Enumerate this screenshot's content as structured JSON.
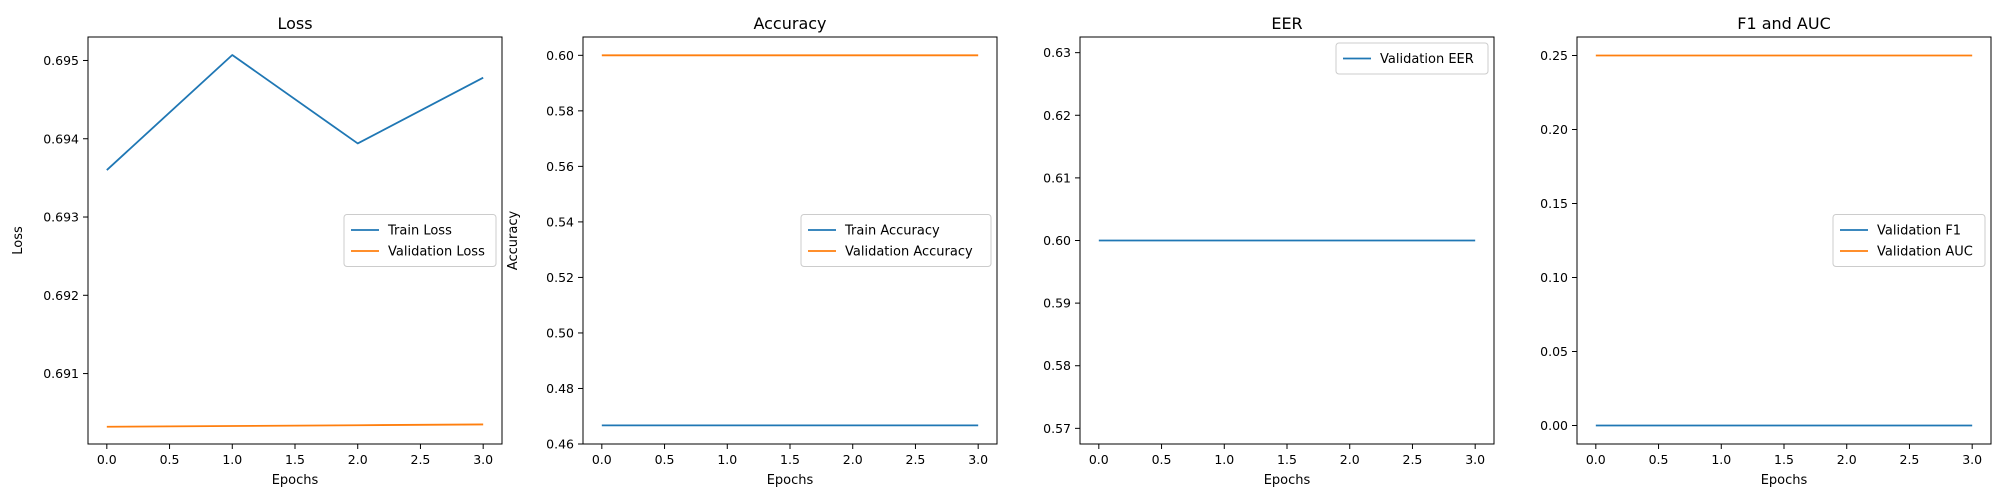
{
  "chart_data": [
    {
      "type": "line",
      "title": "Loss",
      "xlabel": "Epochs",
      "ylabel": "Loss",
      "x": [
        0,
        1,
        2,
        3
      ],
      "xlim": [
        -0.15,
        3.15
      ],
      "ylim": [
        0.6901,
        0.6953
      ],
      "xticks": [
        0.0,
        0.5,
        1.0,
        1.5,
        2.0,
        2.5,
        3.0
      ],
      "xtick_labels": [
        "0.0",
        "0.5",
        "1.0",
        "1.5",
        "2.0",
        "2.5",
        "3.0"
      ],
      "yticks": [
        0.691,
        0.692,
        0.693,
        0.694,
        0.695
      ],
      "ytick_labels": [
        "0.691",
        "0.692",
        "0.693",
        "0.694",
        "0.695"
      ],
      "legend_position": "center right",
      "grid": false,
      "series": [
        {
          "name": "Train Loss",
          "color": "#1f77b4",
          "values": [
            0.6936,
            0.69507,
            0.69394,
            0.69478
          ]
        },
        {
          "name": "Validation Loss",
          "color": "#ff7f0e",
          "values": [
            0.69032,
            0.69033,
            0.69034,
            0.69035
          ]
        }
      ]
    },
    {
      "type": "line",
      "title": "Accuracy",
      "xlabel": "Epochs",
      "ylabel": "Accuracy",
      "x": [
        0,
        1,
        2,
        3
      ],
      "xlim": [
        -0.15,
        3.15
      ],
      "ylim": [
        0.46,
        0.6066
      ],
      "xticks": [
        0.0,
        0.5,
        1.0,
        1.5,
        2.0,
        2.5,
        3.0
      ],
      "xtick_labels": [
        "0.0",
        "0.5",
        "1.0",
        "1.5",
        "2.0",
        "2.5",
        "3.0"
      ],
      "yticks": [
        0.46,
        0.48,
        0.5,
        0.52,
        0.54,
        0.56,
        0.58,
        0.6
      ],
      "ytick_labels": [
        "0.46",
        "0.48",
        "0.50",
        "0.52",
        "0.54",
        "0.56",
        "0.58",
        "0.60"
      ],
      "legend_position": "center right",
      "grid": false,
      "series": [
        {
          "name": "Train Accuracy",
          "color": "#1f77b4",
          "values": [
            0.4667,
            0.4667,
            0.4667,
            0.4667
          ]
        },
        {
          "name": "Validation Accuracy",
          "color": "#ff7f0e",
          "values": [
            0.6,
            0.6,
            0.6,
            0.6
          ]
        }
      ]
    },
    {
      "type": "line",
      "title": "EER",
      "xlabel": "Epochs",
      "ylabel": "",
      "x": [
        0,
        1,
        2,
        3
      ],
      "xlim": [
        -0.15,
        3.15
      ],
      "ylim": [
        0.5675,
        0.6325
      ],
      "xticks": [
        0.0,
        0.5,
        1.0,
        1.5,
        2.0,
        2.5,
        3.0
      ],
      "xtick_labels": [
        "0.0",
        "0.5",
        "1.0",
        "1.5",
        "2.0",
        "2.5",
        "3.0"
      ],
      "yticks": [
        0.57,
        0.58,
        0.59,
        0.6,
        0.61,
        0.62,
        0.63
      ],
      "ytick_labels": [
        "0.57",
        "0.58",
        "0.59",
        "0.60",
        "0.61",
        "0.62",
        "0.63"
      ],
      "legend_position": "upper right",
      "grid": false,
      "series": [
        {
          "name": "Validation EER",
          "color": "#1f77b4",
          "values": [
            0.6,
            0.6,
            0.6,
            0.6
          ]
        }
      ]
    },
    {
      "type": "line",
      "title": "F1 and AUC",
      "xlabel": "Epochs",
      "ylabel": "",
      "x": [
        0,
        1,
        2,
        3
      ],
      "xlim": [
        -0.15,
        3.15
      ],
      "ylim": [
        -0.0125,
        0.2625
      ],
      "xticks": [
        0.0,
        0.5,
        1.0,
        1.5,
        2.0,
        2.5,
        3.0
      ],
      "xtick_labels": [
        "0.0",
        "0.5",
        "1.0",
        "1.5",
        "2.0",
        "2.5",
        "3.0"
      ],
      "yticks": [
        0.0,
        0.05,
        0.1,
        0.15,
        0.2,
        0.25
      ],
      "ytick_labels": [
        "0.00",
        "0.05",
        "0.10",
        "0.15",
        "0.20",
        "0.25"
      ],
      "legend_position": "center right",
      "grid": false,
      "series": [
        {
          "name": "Validation F1",
          "color": "#1f77b4",
          "values": [
            0.0,
            0.0,
            0.0,
            0.0
          ]
        },
        {
          "name": "Validation AUC",
          "color": "#ff7f0e",
          "values": [
            0.25,
            0.25,
            0.25,
            0.25
          ]
        }
      ]
    }
  ]
}
